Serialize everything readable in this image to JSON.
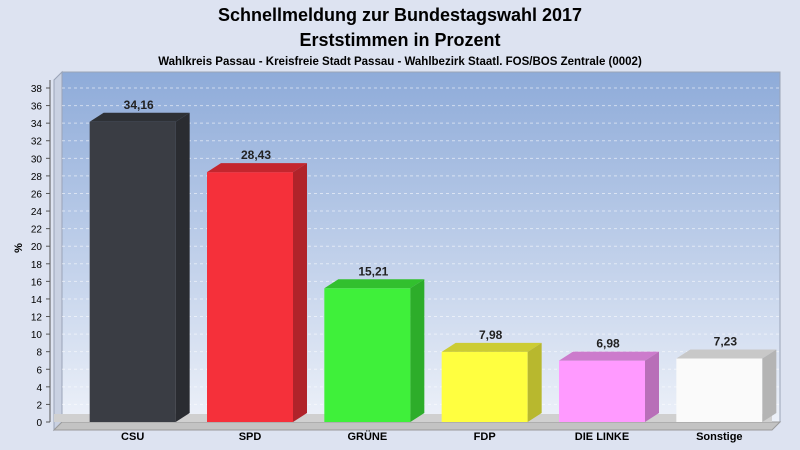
{
  "chart_data": {
    "type": "bar",
    "title": "Schnellmeldung zur Bundestagswahl 2017",
    "subtitle": "Erststimmen in Prozent",
    "caption": "Wahlkreis Passau - Kreisfreie Stadt Passau - Wahlbezirk Staatl. FOS/BOS Zentrale (0002)",
    "ylabel": "%",
    "xlabel": "",
    "ylim": [
      0,
      38
    ],
    "ytick_step": 2,
    "grid": true,
    "categories": [
      "CSU",
      "SPD",
      "GRÜNE",
      "FDP",
      "DIE LINKE",
      "Sonstige"
    ],
    "values": [
      34.16,
      28.43,
      15.21,
      7.98,
      6.98,
      7.23
    ],
    "value_labels": [
      "34,16",
      "28,43",
      "15,21",
      "7,98",
      "6,98",
      "7,23"
    ],
    "colors": [
      "#3a3d44",
      "#f5303a",
      "#3ff03a",
      "#ffff40",
      "#ff9aff",
      "#fafafa"
    ]
  }
}
